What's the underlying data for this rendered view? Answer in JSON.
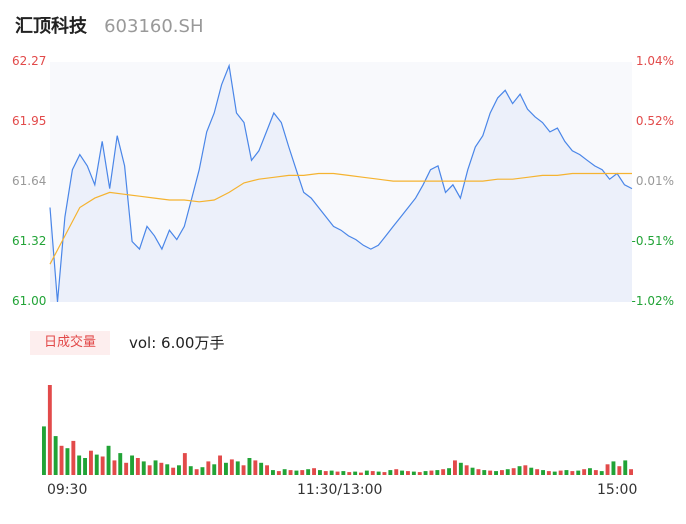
{
  "header": {
    "title": "汇顶科技",
    "code": "603160.SH"
  },
  "volume": {
    "tab_label": "日成交量",
    "text": "vol: 6.00万手"
  },
  "colors": {
    "up": "#e24a4a",
    "down": "#21a336",
    "neutral": "#999999",
    "price_line": "#4a86e8",
    "avg_line": "#f5b330"
  },
  "chart_data": {
    "type": "line",
    "title": "",
    "y_left_ticks": [
      "62.27",
      "61.95",
      "61.64",
      "61.32",
      "61.00"
    ],
    "y_right_ticks": [
      "1.04%",
      "0.52%",
      "0.01%",
      "-0.51%",
      "-1.02%"
    ],
    "x_ticks": [
      "09:30",
      "11:30/13:00",
      "15:00"
    ],
    "ylim": [
      61.0,
      62.27
    ],
    "prev_close": 61.63,
    "series": [
      {
        "values": [
          61.5,
          61.0,
          61.45,
          61.7,
          61.78,
          61.72,
          61.62,
          61.85,
          61.6,
          61.88,
          61.72,
          61.32,
          61.28,
          61.4,
          61.35,
          61.28,
          61.38,
          61.33,
          61.4,
          61.55,
          61.7,
          61.9,
          62.0,
          62.15,
          62.25,
          62.0,
          61.95,
          61.75,
          61.8,
          61.9,
          62.0,
          61.95,
          61.82,
          61.7,
          61.58,
          61.55,
          61.5,
          61.45,
          61.4,
          61.38,
          61.35,
          61.33,
          61.3,
          61.28,
          61.3,
          61.35,
          61.4,
          61.45,
          61.5,
          61.55,
          61.62,
          61.7,
          61.72,
          61.58,
          61.62,
          61.55,
          61.7,
          61.82,
          61.88,
          62.0,
          62.08,
          62.12,
          62.05,
          62.1,
          62.02,
          61.98,
          61.95,
          61.9,
          61.92,
          61.85,
          61.8,
          61.78,
          61.75,
          61.72,
          61.7,
          61.65,
          61.68,
          61.62,
          61.6
        ],
        "name": ""
      },
      {
        "values": [
          61.2,
          61.35,
          61.5,
          61.55,
          61.58,
          61.57,
          61.56,
          61.55,
          61.54,
          61.54,
          61.53,
          61.54,
          61.58,
          61.63,
          61.65,
          61.66,
          61.67,
          61.67,
          61.68,
          61.68,
          61.67,
          61.66,
          61.65,
          61.64,
          61.64,
          61.64,
          61.64,
          61.64,
          61.64,
          61.64,
          61.65,
          61.65,
          61.66,
          61.67,
          61.67,
          61.68,
          61.68,
          61.68,
          61.68,
          61.68
        ],
        "name": ""
      }
    ],
    "volume_bars": [
      {
        "v": 100,
        "c": "d"
      },
      {
        "v": 185,
        "c": "u"
      },
      {
        "v": 80,
        "c": "d"
      },
      {
        "v": 60,
        "c": "u"
      },
      {
        "v": 55,
        "c": "d"
      },
      {
        "v": 70,
        "c": "u"
      },
      {
        "v": 40,
        "c": "d"
      },
      {
        "v": 35,
        "c": "d"
      },
      {
        "v": 50,
        "c": "u"
      },
      {
        "v": 42,
        "c": "d"
      },
      {
        "v": 38,
        "c": "u"
      },
      {
        "v": 60,
        "c": "d"
      },
      {
        "v": 30,
        "c": "u"
      },
      {
        "v": 45,
        "c": "d"
      },
      {
        "v": 25,
        "c": "u"
      },
      {
        "v": 40,
        "c": "d"
      },
      {
        "v": 35,
        "c": "u"
      },
      {
        "v": 28,
        "c": "d"
      },
      {
        "v": 20,
        "c": "u"
      },
      {
        "v": 30,
        "c": "d"
      },
      {
        "v": 25,
        "c": "u"
      },
      {
        "v": 22,
        "c": "d"
      },
      {
        "v": 15,
        "c": "u"
      },
      {
        "v": 20,
        "c": "d"
      },
      {
        "v": 45,
        "c": "u"
      },
      {
        "v": 18,
        "c": "d"
      },
      {
        "v": 12,
        "c": "u"
      },
      {
        "v": 16,
        "c": "d"
      },
      {
        "v": 28,
        "c": "u"
      },
      {
        "v": 22,
        "c": "d"
      },
      {
        "v": 40,
        "c": "u"
      },
      {
        "v": 25,
        "c": "d"
      },
      {
        "v": 32,
        "c": "u"
      },
      {
        "v": 28,
        "c": "d"
      },
      {
        "v": 20,
        "c": "u"
      },
      {
        "v": 35,
        "c": "d"
      },
      {
        "v": 30,
        "c": "u"
      },
      {
        "v": 25,
        "c": "d"
      },
      {
        "v": 20,
        "c": "u"
      },
      {
        "v": 10,
        "c": "d"
      },
      {
        "v": 8,
        "c": "u"
      },
      {
        "v": 12,
        "c": "d"
      },
      {
        "v": 10,
        "c": "u"
      },
      {
        "v": 9,
        "c": "d"
      },
      {
        "v": 10,
        "c": "u"
      },
      {
        "v": 12,
        "c": "d"
      },
      {
        "v": 14,
        "c": "u"
      },
      {
        "v": 10,
        "c": "d"
      },
      {
        "v": 8,
        "c": "u"
      },
      {
        "v": 9,
        "c": "d"
      },
      {
        "v": 7,
        "c": "u"
      },
      {
        "v": 8,
        "c": "d"
      },
      {
        "v": 6,
        "c": "u"
      },
      {
        "v": 7,
        "c": "d"
      },
      {
        "v": 5,
        "c": "u"
      },
      {
        "v": 9,
        "c": "d"
      },
      {
        "v": 8,
        "c": "u"
      },
      {
        "v": 7,
        "c": "d"
      },
      {
        "v": 6,
        "c": "u"
      },
      {
        "v": 10,
        "c": "d"
      },
      {
        "v": 12,
        "c": "u"
      },
      {
        "v": 9,
        "c": "d"
      },
      {
        "v": 8,
        "c": "u"
      },
      {
        "v": 7,
        "c": "d"
      },
      {
        "v": 6,
        "c": "u"
      },
      {
        "v": 8,
        "c": "d"
      },
      {
        "v": 9,
        "c": "u"
      },
      {
        "v": 10,
        "c": "d"
      },
      {
        "v": 12,
        "c": "u"
      },
      {
        "v": 14,
        "c": "d"
      },
      {
        "v": 30,
        "c": "u"
      },
      {
        "v": 25,
        "c": "d"
      },
      {
        "v": 20,
        "c": "u"
      },
      {
        "v": 15,
        "c": "d"
      },
      {
        "v": 12,
        "c": "u"
      },
      {
        "v": 10,
        "c": "d"
      },
      {
        "v": 9,
        "c": "u"
      },
      {
        "v": 8,
        "c": "d"
      },
      {
        "v": 10,
        "c": "u"
      },
      {
        "v": 12,
        "c": "d"
      },
      {
        "v": 14,
        "c": "u"
      },
      {
        "v": 18,
        "c": "d"
      },
      {
        "v": 20,
        "c": "u"
      },
      {
        "v": 15,
        "c": "d"
      },
      {
        "v": 12,
        "c": "u"
      },
      {
        "v": 10,
        "c": "d"
      },
      {
        "v": 8,
        "c": "u"
      },
      {
        "v": 7,
        "c": "d"
      },
      {
        "v": 9,
        "c": "u"
      },
      {
        "v": 10,
        "c": "d"
      },
      {
        "v": 8,
        "c": "u"
      },
      {
        "v": 9,
        "c": "d"
      },
      {
        "v": 12,
        "c": "u"
      },
      {
        "v": 14,
        "c": "d"
      },
      {
        "v": 10,
        "c": "u"
      },
      {
        "v": 8,
        "c": "d"
      },
      {
        "v": 22,
        "c": "u"
      },
      {
        "v": 28,
        "c": "d"
      },
      {
        "v": 18,
        "c": "u"
      },
      {
        "v": 30,
        "c": "d"
      },
      {
        "v": 12,
        "c": "u"
      }
    ]
  }
}
